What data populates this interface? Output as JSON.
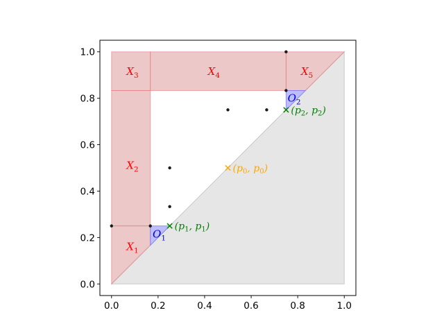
{
  "chart_data": {
    "type": "scatter",
    "title": "",
    "xlabel": "",
    "ylabel": "",
    "xlim": [
      -0.05,
      1.05
    ],
    "ylim": [
      -0.05,
      1.05
    ],
    "xticks": [
      0.0,
      0.2,
      0.4,
      0.6,
      0.8,
      1.0
    ],
    "xtick_labels": [
      "0.0",
      "0.2",
      "0.4",
      "0.6",
      "0.8",
      "1.0"
    ],
    "yticks": [
      0.0,
      0.2,
      0.4,
      0.6,
      0.8,
      1.0
    ],
    "ytick_labels": [
      "0.0",
      "0.2",
      "0.4",
      "0.6",
      "0.8",
      "1.0"
    ],
    "grid": false,
    "colors": {
      "red_region": "#dc9a9d",
      "red_edge": "#e37a80",
      "blue_region": "#b3b3ff",
      "gray_region": "#e5e5e5",
      "label_red": "#ff0000",
      "label_blue": "#0000cc",
      "marker_green": "#008000",
      "marker_orange": "#ffa500",
      "point": "#1a1a1a"
    },
    "outer_triangle": [
      [
        0,
        0
      ],
      [
        1,
        0
      ],
      [
        1,
        1
      ]
    ],
    "regions": [
      {
        "label": "X_1",
        "kind": "red",
        "polygon": [
          [
            0,
            0
          ],
          [
            0,
            0.25
          ],
          [
            0.1667,
            0.25
          ],
          [
            0.1667,
            0.1667
          ]
        ]
      },
      {
        "label": "X_2",
        "kind": "red",
        "polygon": [
          [
            0,
            0.25
          ],
          [
            0,
            0.8333
          ],
          [
            0.1667,
            0.8333
          ],
          [
            0.1667,
            0.25
          ]
        ]
      },
      {
        "label": "X_3",
        "kind": "red",
        "polygon": [
          [
            0,
            0.8333
          ],
          [
            0,
            1
          ],
          [
            0.1667,
            1
          ],
          [
            0.1667,
            0.8333
          ]
        ]
      },
      {
        "label": "X_4",
        "kind": "red",
        "polygon": [
          [
            0.1667,
            0.8333
          ],
          [
            0.1667,
            1
          ],
          [
            0.75,
            1
          ],
          [
            0.75,
            0.8333
          ]
        ]
      },
      {
        "label": "X_5",
        "kind": "red",
        "polygon": [
          [
            0.75,
            0.8333
          ],
          [
            0.75,
            1
          ],
          [
            1,
            1
          ],
          [
            0.8333,
            0.8333
          ]
        ]
      },
      {
        "label": "O_1",
        "kind": "blue",
        "polygon": [
          [
            0.1667,
            0.1667
          ],
          [
            0.1667,
            0.25
          ],
          [
            0.25,
            0.25
          ]
        ]
      },
      {
        "label": "O_2",
        "kind": "blue",
        "polygon": [
          [
            0.75,
            0.75
          ],
          [
            0.75,
            0.8333
          ],
          [
            0.8333,
            0.8333
          ]
        ]
      }
    ],
    "region_labels": [
      {
        "name": "X",
        "sub": "1",
        "x": 0.09,
        "y": 0.16,
        "kind": "red"
      },
      {
        "name": "X",
        "sub": "2",
        "x": 0.09,
        "y": 0.51,
        "kind": "red"
      },
      {
        "name": "X",
        "sub": "3",
        "x": 0.09,
        "y": 0.915,
        "kind": "red"
      },
      {
        "name": "X",
        "sub": "4",
        "x": 0.44,
        "y": 0.915,
        "kind": "red"
      },
      {
        "name": "X",
        "sub": "5",
        "x": 0.84,
        "y": 0.915,
        "kind": "red"
      },
      {
        "name": "O",
        "sub": "1",
        "x": 0.205,
        "y": 0.215,
        "kind": "blue"
      },
      {
        "name": "O",
        "sub": "2",
        "x": 0.785,
        "y": 0.8,
        "kind": "blue"
      }
    ],
    "points": [
      {
        "x": 0.0,
        "y": 0.25
      },
      {
        "x": 0.1667,
        "y": 0.25
      },
      {
        "x": 0.25,
        "y": 0.3333
      },
      {
        "x": 0.25,
        "y": 0.5
      },
      {
        "x": 0.5,
        "y": 0.75
      },
      {
        "x": 0.6667,
        "y": 0.75
      },
      {
        "x": 0.75,
        "y": 0.8333
      },
      {
        "x": 0.75,
        "y": 1.0
      }
    ],
    "markers": [
      {
        "x": 0.25,
        "y": 0.25,
        "kind": "green",
        "label": "(p",
        "sub": "1",
        "label_b": ", p",
        "sub_b": "1",
        "close": ")"
      },
      {
        "x": 0.5,
        "y": 0.5,
        "kind": "orange",
        "label": "(p",
        "sub": "0",
        "label_b": ", p",
        "sub_b": "0",
        "close": ")"
      },
      {
        "x": 0.75,
        "y": 0.75,
        "kind": "green",
        "label": "(p",
        "sub": "2",
        "label_b": ", p",
        "sub_b": "2",
        "close": ")"
      }
    ]
  }
}
